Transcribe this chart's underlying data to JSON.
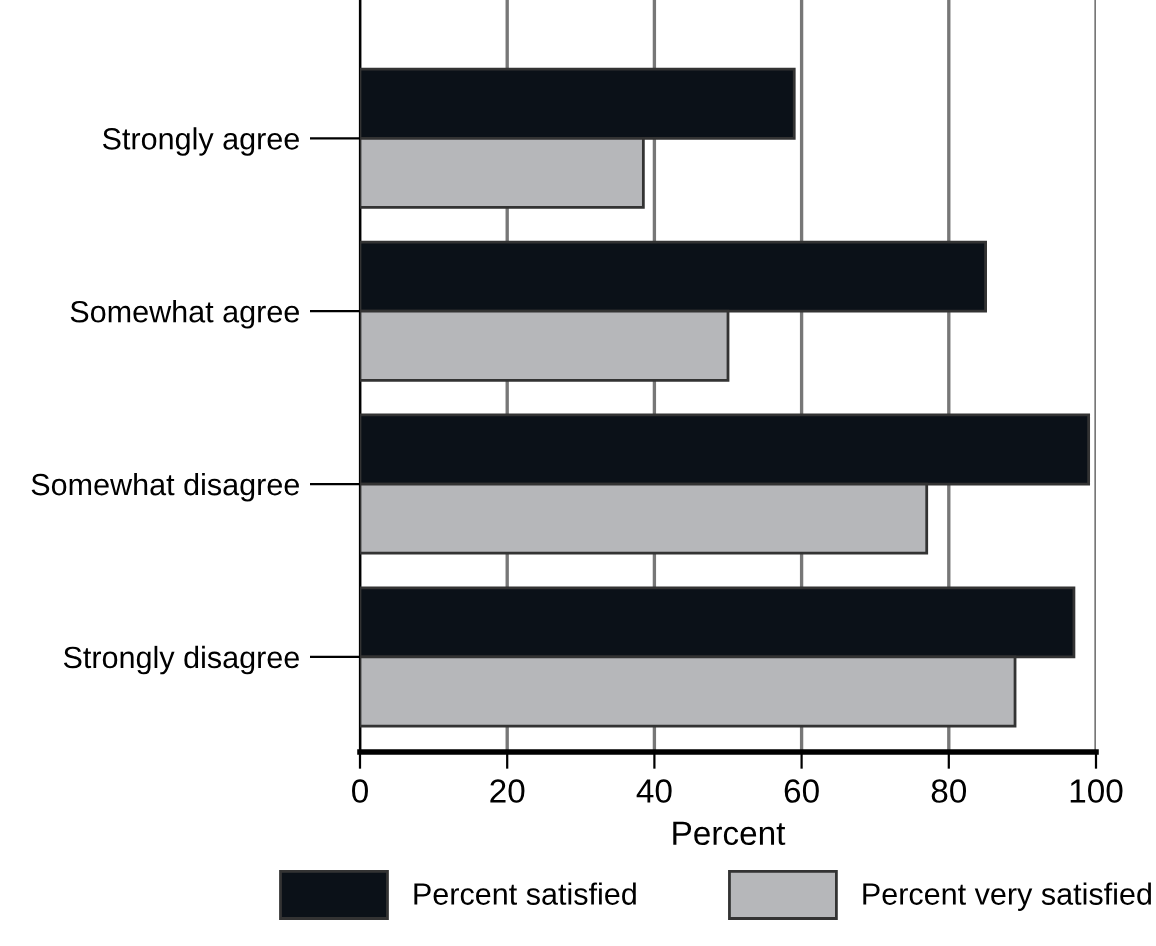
{
  "chart_data": {
    "type": "bar",
    "orientation": "horizontal",
    "categories": [
      "Strongly agree",
      "Somewhat agree",
      "Somewhat disagree",
      "Strongly disagree"
    ],
    "series": [
      {
        "name": "Percent satisfied",
        "color": "#0b1118",
        "values": [
          59,
          85,
          99,
          97
        ]
      },
      {
        "name": "Percent very satisfied",
        "color": "#b6b7ba",
        "values": [
          38.5,
          50,
          77,
          89
        ]
      }
    ],
    "xlabel": "Percent",
    "xlim": [
      0,
      100
    ],
    "xticks": [
      0,
      20,
      40,
      60,
      80,
      100
    ],
    "grid": "x",
    "legend": "bottom"
  }
}
